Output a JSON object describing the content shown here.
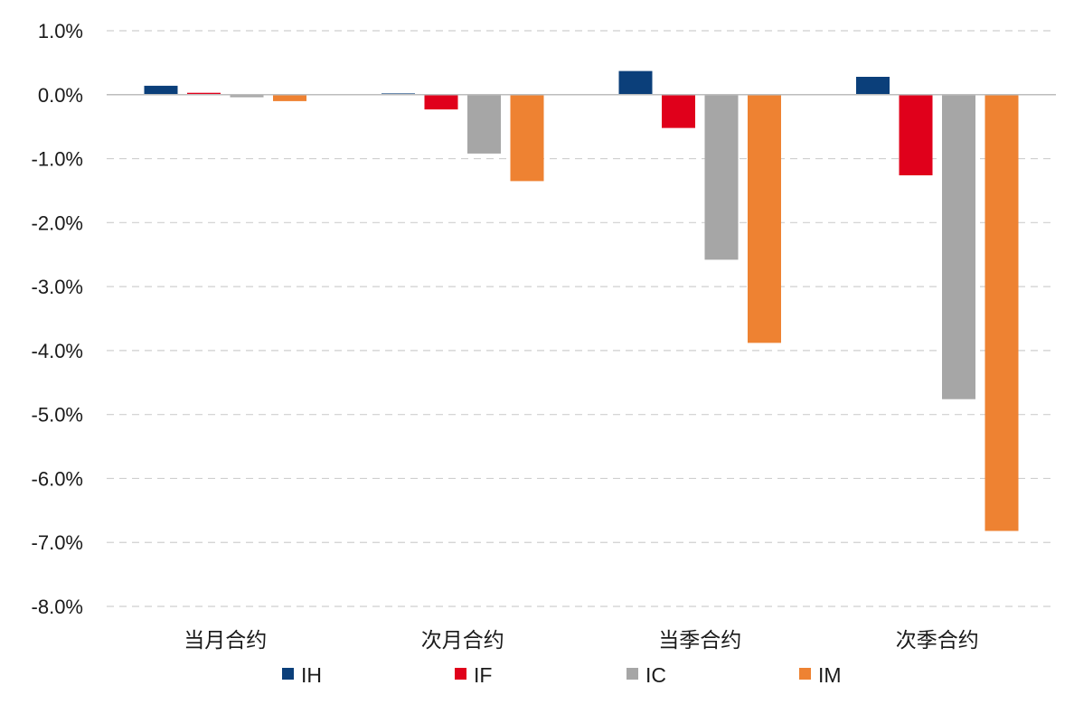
{
  "chart_data": {
    "type": "bar",
    "title": "",
    "xlabel": "",
    "ylabel": "",
    "categories": [
      "当月合约",
      "次月合约",
      "当季合约",
      "次季合约"
    ],
    "series": [
      {
        "name": "IH",
        "color": "#0b3f7a",
        "values": [
          0.14,
          0.02,
          0.37,
          0.28
        ]
      },
      {
        "name": "IF",
        "color": "#e0001b",
        "values": [
          0.03,
          -0.23,
          -0.52,
          -1.26
        ]
      },
      {
        "name": "IC",
        "color": "#a6a6a6",
        "values": [
          -0.04,
          -0.92,
          -2.58,
          -4.76
        ]
      },
      {
        "name": "IM",
        "color": "#ee8232",
        "values": [
          -0.1,
          -1.35,
          -3.88,
          -6.82
        ]
      }
    ],
    "ylim": [
      -8.0,
      1.0
    ],
    "yticks": [
      1.0,
      0.0,
      -1.0,
      -2.0,
      -3.0,
      -4.0,
      -5.0,
      -6.0,
      -7.0,
      -8.0
    ],
    "ytick_labels": [
      "1.0%",
      "0.0%",
      "-1.0%",
      "-2.0%",
      "-3.0%",
      "-4.0%",
      "-5.0%",
      "-6.0%",
      "-7.0%",
      "-8.0%"
    ],
    "grid": true,
    "legend_position": "bottom"
  }
}
